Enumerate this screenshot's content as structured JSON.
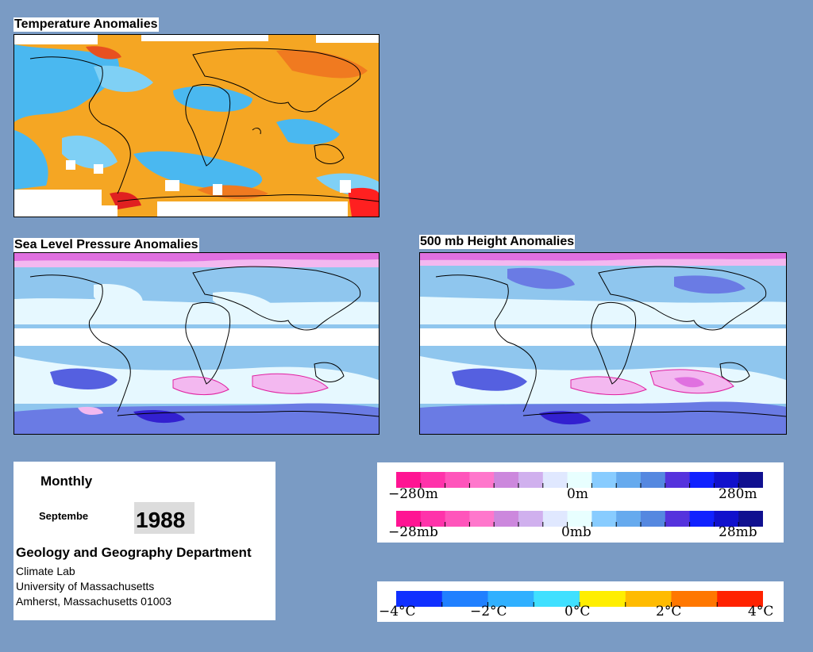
{
  "temperature_map": {
    "title": "Temperature Anomalies"
  },
  "slp_map": {
    "title": "Sea Level Pressure Anomalies"
  },
  "height_map": {
    "title": "500 mb Height Anomalies"
  },
  "info": {
    "period": "Monthly",
    "month": "Septembe",
    "year": "1988",
    "department": "Geology and Geography Department",
    "lab": "Climate Lab",
    "university": "University of Massachusetts",
    "address": "Amherst, Massachusetts 01003"
  },
  "height_scale": {
    "colors": [
      "#ff1493",
      "#ff33aa",
      "#ff55bb",
      "#ff77cc",
      "#cc88dd",
      "#d0b0ee",
      "#e0e8ff",
      "#e8ffff",
      "#88ccff",
      "#66aaee",
      "#5588e0",
      "#5533dd",
      "#1122ff",
      "#1111cc",
      "#101090"
    ],
    "labels": {
      "min": "−280m",
      "mid": "0m",
      "max": "280m"
    }
  },
  "pressure_scale": {
    "colors": [
      "#ff1493",
      "#ff33aa",
      "#ff55bb",
      "#ff77cc",
      "#cc88dd",
      "#d0b0ee",
      "#e0e8ff",
      "#e8ffff",
      "#88ccff",
      "#66aaee",
      "#5588e0",
      "#5533dd",
      "#1122ff",
      "#1111cc",
      "#101090"
    ],
    "labels": {
      "min": "−28mb",
      "mid": "0mb",
      "max": "28mb"
    }
  },
  "temperature_scale": {
    "colors": [
      "#1030ff",
      "#2080ff",
      "#30b0ff",
      "#40e0ff",
      "#ffee00",
      "#ffbb00",
      "#ff7700",
      "#ff2200"
    ],
    "labels": {
      "t1": "−4°C",
      "t2": "−2°C",
      "t3": "0°C",
      "t4": "2°C",
      "t5": "4°C"
    }
  },
  "colors": {
    "background": "#7a9bc4",
    "warm": "#f5a020",
    "cool": "#4ab8f0",
    "slp_base": "#8fc6ee",
    "slp_low": "#5560e0",
    "slp_high": "#f3b8f0"
  }
}
